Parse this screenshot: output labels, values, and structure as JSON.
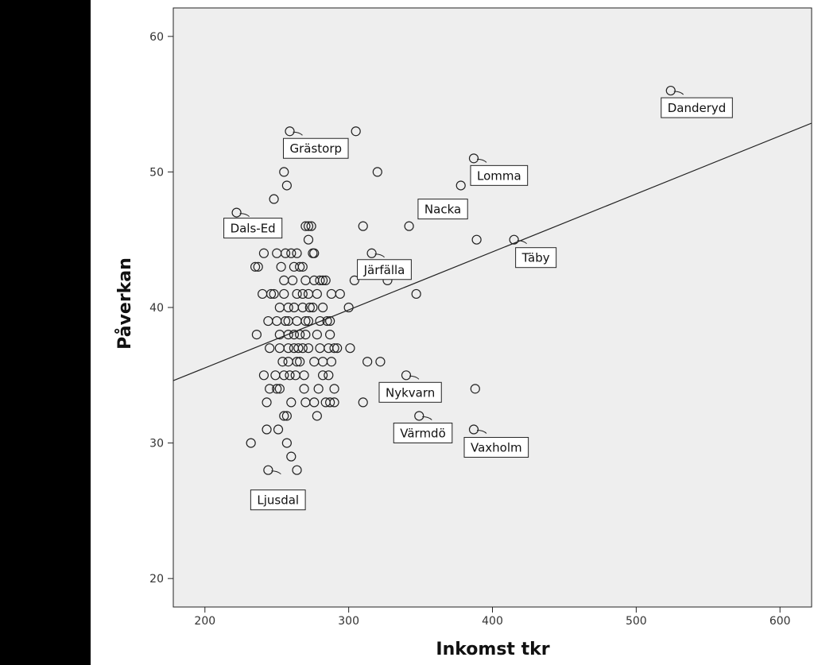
{
  "colors": {
    "left_band": "#000000",
    "plot_background": "#eeeeee",
    "marker_stroke": "#222222",
    "fit_line": "#222222"
  },
  "chart_data": {
    "type": "scatter",
    "title": "",
    "xlabel": "Inkomst tkr",
    "ylabel": "Påverkan",
    "xlim": [
      178,
      622
    ],
    "ylim": [
      17.9,
      62.1
    ],
    "x_ticks": [
      200,
      300,
      400,
      500,
      600
    ],
    "y_ticks": [
      20,
      30,
      40,
      50,
      60
    ],
    "grid": false,
    "legend": "none",
    "fit_line": {
      "x": [
        178,
        622
      ],
      "y": [
        34.6,
        53.6
      ]
    },
    "points": [
      {
        "x": 222,
        "y": 47,
        "label": "Dals-Ed"
      },
      {
        "x": 248,
        "y": 48
      },
      {
        "x": 255,
        "y": 50
      },
      {
        "x": 257,
        "y": 49
      },
      {
        "x": 259,
        "y": 53,
        "label": "Grästorp"
      },
      {
        "x": 305,
        "y": 53
      },
      {
        "x": 320,
        "y": 50
      },
      {
        "x": 387,
        "y": 51,
        "label": "Lomma"
      },
      {
        "x": 378,
        "y": 49
      },
      {
        "x": 524,
        "y": 56,
        "label": "Danderyd"
      },
      {
        "x": 356,
        "y": 47,
        "label": "Nacka"
      },
      {
        "x": 310,
        "y": 46
      },
      {
        "x": 342,
        "y": 46
      },
      {
        "x": 389,
        "y": 45
      },
      {
        "x": 415,
        "y": 45,
        "label": "Täby"
      },
      {
        "x": 316,
        "y": 44,
        "label": "Järfälla"
      },
      {
        "x": 329,
        "y": 43
      },
      {
        "x": 340,
        "y": 43
      },
      {
        "x": 304,
        "y": 42
      },
      {
        "x": 327,
        "y": 42
      },
      {
        "x": 300,
        "y": 40
      },
      {
        "x": 347,
        "y": 41
      },
      {
        "x": 270,
        "y": 46
      },
      {
        "x": 272,
        "y": 46
      },
      {
        "x": 274,
        "y": 46
      },
      {
        "x": 272,
        "y": 45
      },
      {
        "x": 241,
        "y": 44
      },
      {
        "x": 250,
        "y": 44
      },
      {
        "x": 256,
        "y": 44
      },
      {
        "x": 260,
        "y": 44
      },
      {
        "x": 264,
        "y": 44
      },
      {
        "x": 275,
        "y": 44
      },
      {
        "x": 276,
        "y": 44
      },
      {
        "x": 235,
        "y": 43
      },
      {
        "x": 237,
        "y": 43
      },
      {
        "x": 253,
        "y": 43
      },
      {
        "x": 262,
        "y": 43
      },
      {
        "x": 266,
        "y": 43
      },
      {
        "x": 268,
        "y": 43
      },
      {
        "x": 255,
        "y": 42
      },
      {
        "x": 261,
        "y": 42
      },
      {
        "x": 270,
        "y": 42
      },
      {
        "x": 276,
        "y": 42
      },
      {
        "x": 280,
        "y": 42
      },
      {
        "x": 282,
        "y": 42
      },
      {
        "x": 284,
        "y": 42
      },
      {
        "x": 240,
        "y": 41
      },
      {
        "x": 246,
        "y": 41
      },
      {
        "x": 248,
        "y": 41
      },
      {
        "x": 255,
        "y": 41
      },
      {
        "x": 264,
        "y": 41
      },
      {
        "x": 268,
        "y": 41
      },
      {
        "x": 272,
        "y": 41
      },
      {
        "x": 278,
        "y": 41
      },
      {
        "x": 288,
        "y": 41
      },
      {
        "x": 294,
        "y": 41
      },
      {
        "x": 252,
        "y": 40
      },
      {
        "x": 258,
        "y": 40
      },
      {
        "x": 262,
        "y": 40
      },
      {
        "x": 268,
        "y": 40
      },
      {
        "x": 273,
        "y": 40
      },
      {
        "x": 275,
        "y": 40
      },
      {
        "x": 282,
        "y": 40
      },
      {
        "x": 244,
        "y": 39
      },
      {
        "x": 250,
        "y": 39
      },
      {
        "x": 256,
        "y": 39
      },
      {
        "x": 258,
        "y": 39
      },
      {
        "x": 264,
        "y": 39
      },
      {
        "x": 270,
        "y": 39
      },
      {
        "x": 272,
        "y": 39
      },
      {
        "x": 280,
        "y": 39
      },
      {
        "x": 285,
        "y": 39
      },
      {
        "x": 287,
        "y": 39
      },
      {
        "x": 236,
        "y": 38
      },
      {
        "x": 252,
        "y": 38
      },
      {
        "x": 258,
        "y": 38
      },
      {
        "x": 262,
        "y": 38
      },
      {
        "x": 266,
        "y": 38
      },
      {
        "x": 270,
        "y": 38
      },
      {
        "x": 278,
        "y": 38
      },
      {
        "x": 287,
        "y": 38
      },
      {
        "x": 245,
        "y": 37
      },
      {
        "x": 252,
        "y": 37
      },
      {
        "x": 258,
        "y": 37
      },
      {
        "x": 262,
        "y": 37
      },
      {
        "x": 265,
        "y": 37
      },
      {
        "x": 268,
        "y": 37
      },
      {
        "x": 272,
        "y": 37
      },
      {
        "x": 280,
        "y": 37
      },
      {
        "x": 286,
        "y": 37
      },
      {
        "x": 290,
        "y": 37
      },
      {
        "x": 292,
        "y": 37
      },
      {
        "x": 301,
        "y": 37
      },
      {
        "x": 254,
        "y": 36
      },
      {
        "x": 258,
        "y": 36
      },
      {
        "x": 264,
        "y": 36
      },
      {
        "x": 266,
        "y": 36
      },
      {
        "x": 276,
        "y": 36
      },
      {
        "x": 282,
        "y": 36
      },
      {
        "x": 288,
        "y": 36
      },
      {
        "x": 313,
        "y": 36
      },
      {
        "x": 322,
        "y": 36
      },
      {
        "x": 241,
        "y": 35
      },
      {
        "x": 249,
        "y": 35
      },
      {
        "x": 255,
        "y": 35
      },
      {
        "x": 259,
        "y": 35
      },
      {
        "x": 263,
        "y": 35
      },
      {
        "x": 269,
        "y": 35
      },
      {
        "x": 282,
        "y": 35
      },
      {
        "x": 286,
        "y": 35
      },
      {
        "x": 340,
        "y": 35,
        "label": "Nykvarn"
      },
      {
        "x": 245,
        "y": 34
      },
      {
        "x": 250,
        "y": 34
      },
      {
        "x": 252,
        "y": 34
      },
      {
        "x": 269,
        "y": 34
      },
      {
        "x": 279,
        "y": 34
      },
      {
        "x": 290,
        "y": 34
      },
      {
        "x": 388,
        "y": 34
      },
      {
        "x": 243,
        "y": 33
      },
      {
        "x": 260,
        "y": 33
      },
      {
        "x": 270,
        "y": 33
      },
      {
        "x": 276,
        "y": 33
      },
      {
        "x": 284,
        "y": 33
      },
      {
        "x": 287,
        "y": 33
      },
      {
        "x": 290,
        "y": 33
      },
      {
        "x": 310,
        "y": 33
      },
      {
        "x": 255,
        "y": 32
      },
      {
        "x": 257,
        "y": 32
      },
      {
        "x": 278,
        "y": 32
      },
      {
        "x": 349,
        "y": 32,
        "label": "Värmdö"
      },
      {
        "x": 243,
        "y": 31
      },
      {
        "x": 251,
        "y": 31
      },
      {
        "x": 387,
        "y": 31,
        "label": "Vaxholm"
      },
      {
        "x": 232,
        "y": 30
      },
      {
        "x": 257,
        "y": 30
      },
      {
        "x": 260,
        "y": 29
      },
      {
        "x": 244,
        "y": 28,
        "label": "Ljusdal"
      },
      {
        "x": 264,
        "y": 28
      }
    ]
  }
}
